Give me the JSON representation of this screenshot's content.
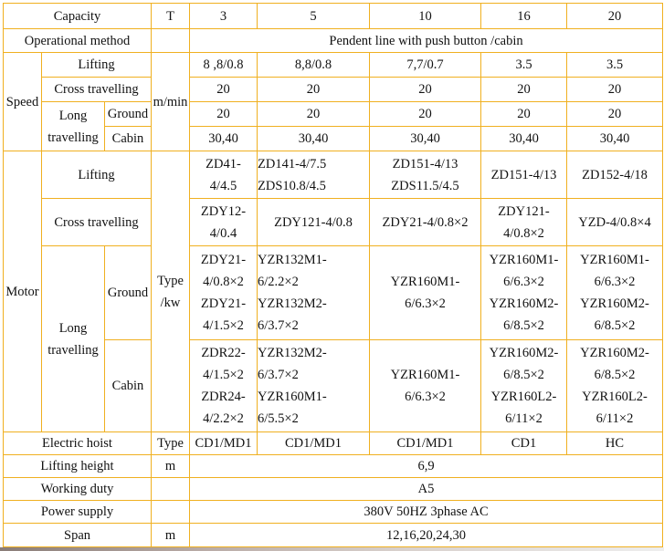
{
  "header": {
    "label": "Capacity",
    "unit": "T",
    "capacities": [
      "3",
      "5",
      "10",
      "16",
      "20"
    ]
  },
  "operational": {
    "label": "Operational method",
    "value": "Pendent line with push button /cabin"
  },
  "speed": {
    "label": "Speed",
    "unit": "m/min",
    "lifting": {
      "label": "Lifting",
      "values": [
        "8 ,8/0.8",
        "8,8/0.8",
        "7,7/0.7",
        "3.5",
        "3.5"
      ]
    },
    "cross": {
      "label": "Cross travelling",
      "values": [
        "20",
        "20",
        "20",
        "20",
        "20"
      ]
    },
    "long_label": "Long\ntravelling",
    "ground": {
      "label": "Ground",
      "values": [
        "20",
        "20",
        "20",
        "20",
        "20"
      ]
    },
    "cabin": {
      "label": "Cabin",
      "values": [
        "30,40",
        "30,40",
        "30,40",
        "30,40",
        "30,40"
      ]
    }
  },
  "motor": {
    "label": "Motor",
    "unit": "Type\n/kw",
    "lifting": {
      "label": "Lifting",
      "values": [
        "ZD41-\n4/4.5",
        "ZD141-4/7.5\nZDS10.8/4.5",
        "ZD151-4/13\nZDS11.5/4.5",
        "ZD151-4/13\n ",
        "ZD152-4/18"
      ]
    },
    "cross": {
      "label": "Cross travelling",
      "values": [
        "ZDY12-\n4/0.4",
        "ZDY121-4/0.8",
        "ZDY21-4/0.8×2",
        "ZDY121-\n4/0.8×2",
        "YZD-4/0.8×4"
      ]
    },
    "long_label": "Long\ntravelling",
    "ground": {
      "label": "Ground",
      "values": [
        "ZDY21-\n4/0.8×2\nZDY21-\n4/1.5×2",
        "YZR132M1-\n6/2.2×2\nYZR132M2-\n6/3.7×2",
        "YZR160M1-\n6/6.3×2\n ",
        "YZR160M1-\n6/6.3×2\nYZR160M2-\n6/8.5×2",
        "YZR160M1-\n6/6.3×2\nYZR160M2-\n6/8.5×2"
      ]
    },
    "cabin": {
      "label": "Cabin",
      "values": [
        "ZDR22-\n4/1.5×2\nZDR24-\n4/2.2×2",
        "YZR132M2-\n6/3.7×2\nYZR160M1-\n6/5.5×2",
        "YZR160M1-\n6/6.3×2",
        "YZR160M2-\n6/8.5×2\nYZR160L2-\n6/11×2",
        "YZR160M2-\n6/8.5×2\nYZR160L2-\n6/11×2"
      ]
    }
  },
  "hoist": {
    "label": "Electric hoist",
    "unit": "Type",
    "values": [
      "CD1/MD1",
      "CD1/MD1",
      "CD1/MD1",
      "CD1",
      "HC"
    ]
  },
  "lifting_height": {
    "label": "Lifting height",
    "unit": "m",
    "value": "6,9"
  },
  "working_duty": {
    "label": "Working duty",
    "unit": "",
    "value": "A5"
  },
  "power": {
    "label": "Power supply",
    "unit": "",
    "value": "380V 50HZ 3phase AC"
  },
  "span": {
    "label": "Span",
    "unit": "m",
    "value": "12,16,20,24,30"
  },
  "colors": {
    "border": "#f0b020"
  }
}
